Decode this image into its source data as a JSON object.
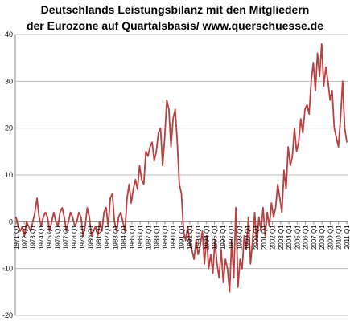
{
  "chart_data": {
    "type": "line",
    "title": "Deutschlands Leistungsbilanz mit den Mitgliedern",
    "subtitle": "der Eurozone  auf Quartalsbasis/  www.querschuesse.de",
    "xlabel": "",
    "ylabel": "",
    "ylim": [
      -20,
      40
    ],
    "yticks": [
      "-20",
      "-10",
      "0",
      "10",
      "20",
      "30",
      "40"
    ],
    "xticks": [
      "1971 Q1",
      "1972 Q1",
      "1973 Q1",
      "1974 Q1",
      "1975 Q1",
      "1976 Q1",
      "1977 Q1",
      "1978 Q1",
      "1979 Q1",
      "1980 Q1",
      "1981 Q1",
      "1982 Q1",
      "1983 Q1",
      "1984 Q1",
      "1985 Q1",
      "1986 Q1",
      "1987 Q1",
      "1988 Q1",
      "1989 Q1",
      "1990 Q1",
      "1991 Q1",
      "1992 Q1",
      "1993 Q1",
      "1994 Q1",
      "1995 Q1",
      "1996 Q1",
      "1997 Q1",
      "1998 Q1",
      "1999 Q1",
      "2000 Q1",
      "2001 Q1",
      "2002 Q1",
      "2003 Q1",
      "2004 Q1",
      "2005 Q1",
      "2006 Q1",
      "2007 Q1",
      "2008 Q1",
      "2009 Q1",
      "2010 Q1",
      "2011 Q1"
    ],
    "grid": "horizontal",
    "line_color": "#b84040",
    "series": [
      {
        "values": [
          1,
          -1,
          -2,
          -1,
          -3,
          0,
          -1,
          -2,
          0,
          2,
          5,
          1,
          -1,
          1,
          2,
          1,
          -2,
          0,
          2,
          0,
          -1,
          2,
          3,
          1,
          -2,
          0,
          2,
          1,
          -1,
          0,
          2,
          1,
          -3,
          -1,
          3,
          1,
          -3,
          -2,
          -1,
          -3,
          0,
          -2,
          2,
          3,
          -1,
          5,
          6,
          0,
          -2,
          1,
          2,
          0,
          -2,
          5,
          8,
          4,
          7,
          9,
          7,
          12,
          9,
          8,
          15,
          14,
          16,
          17,
          13,
          15,
          19,
          20,
          12,
          18,
          26,
          24,
          16,
          22,
          24,
          17,
          8,
          6,
          -2,
          -4,
          -1,
          -5,
          -6,
          -8,
          -4,
          -7,
          -5,
          -2,
          -9,
          -3,
          -10,
          -7,
          -11,
          -4,
          -9,
          -12,
          -6,
          -13,
          -8,
          -10,
          -15,
          -4,
          -12,
          3,
          -14,
          -8,
          -10,
          -3,
          -6,
          1,
          -9,
          -4,
          2,
          -5,
          1,
          -2,
          3,
          -3,
          2,
          -1,
          4,
          1,
          3,
          8,
          5,
          2,
          11,
          7,
          16,
          12,
          14,
          20,
          15,
          17,
          22,
          19,
          24,
          25,
          23,
          30,
          34,
          28,
          36,
          31,
          38,
          29,
          33,
          30,
          26,
          28,
          20,
          18,
          16,
          22,
          30,
          20,
          17
        ]
      }
    ]
  }
}
